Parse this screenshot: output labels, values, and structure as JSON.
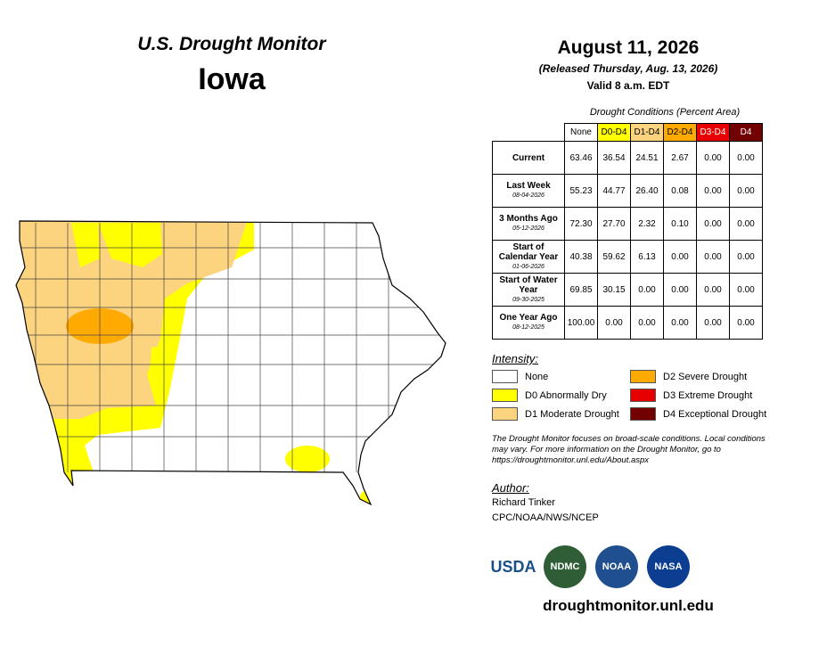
{
  "header": {
    "subtitle": "U.S. Drought Monitor",
    "state": "Iowa",
    "date": "August 11, 2026",
    "released": "(Released Thursday, Aug. 13, 2026)",
    "valid": "Valid 8 a.m. EDT"
  },
  "table": {
    "caption": "Drought Conditions (Percent Area)",
    "columns": [
      "None",
      "D0-D4",
      "D1-D4",
      "D2-D4",
      "D3-D4",
      "D4"
    ],
    "rows": [
      {
        "label": "Current",
        "values": [
          "63.46",
          "36.54",
          "24.51",
          "2.67",
          "0.00",
          "0.00"
        ]
      },
      {
        "label": "Last Week",
        "date": "08-04-2026",
        "values": [
          "55.23",
          "44.77",
          "26.40",
          "0.08",
          "0.00",
          "0.00"
        ]
      },
      {
        "label": "3 Months Ago",
        "date": "05-12-2026",
        "values": [
          "72.30",
          "27.70",
          "2.32",
          "0.10",
          "0.00",
          "0.00"
        ]
      },
      {
        "label": "Start of Calendar Year",
        "date": "01-06-2026",
        "values": [
          "40.38",
          "59.62",
          "6.13",
          "0.00",
          "0.00",
          "0.00"
        ]
      },
      {
        "label": "Start of Water Year",
        "date": "09-30-2025",
        "values": [
          "69.85",
          "30.15",
          "0.00",
          "0.00",
          "0.00",
          "0.00"
        ]
      },
      {
        "label": "One Year Ago",
        "date": "08-12-2025",
        "values": [
          "100.00",
          "0.00",
          "0.00",
          "0.00",
          "0.00",
          "0.00"
        ]
      }
    ]
  },
  "legend": {
    "title": "Intensity:",
    "items": [
      {
        "label": "None",
        "color": "#ffffff"
      },
      {
        "label": "D0 Abnormally Dry",
        "color": "#ffff00"
      },
      {
        "label": "D1 Moderate Drought",
        "color": "#fcd37f"
      },
      {
        "label": "D2 Severe Drought",
        "color": "#ffaa00"
      },
      {
        "label": "D3 Extreme Drought",
        "color": "#e60000"
      },
      {
        "label": "D4 Exceptional Drought",
        "color": "#730000"
      }
    ]
  },
  "note": "The Drought Monitor focuses on broad-scale conditions. Local conditions may vary. For more information on the Drought Monitor, go to https://droughtmonitor.unl.edu/About.aspx",
  "author": {
    "title": "Author:",
    "name": "Richard Tinker",
    "org": "CPC/NOAA/NWS/NCEP"
  },
  "logos": [
    "USDA",
    "NDMC",
    "NOAA",
    "NASA"
  ],
  "url": "droughtmonitor.unl.edu"
}
